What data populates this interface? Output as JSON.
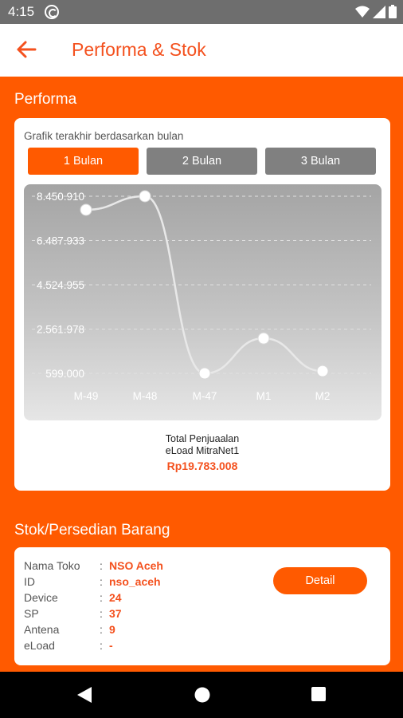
{
  "status_bar": {
    "time": "4:15",
    "icons": [
      "sync-icon",
      "wifi-icon",
      "signal-icon",
      "battery-icon"
    ]
  },
  "app_bar": {
    "title": "Performa & Stok",
    "back_icon": "arrow-left-icon"
  },
  "performance": {
    "section_title": "Performa",
    "caption": "Grafik terakhir berdasarkan bulan",
    "tabs": [
      {
        "label": "1 Bulan",
        "active": true
      },
      {
        "label": "2 Bulan",
        "active": false
      },
      {
        "label": "3 Bulan",
        "active": false
      }
    ],
    "total_label_line1": "Total Penjuaalan",
    "total_label_line2": "eLoad MitraNet1",
    "total_value": "Rp19.783.008"
  },
  "chart_data": {
    "type": "line",
    "categories": [
      "M-49",
      "M-48",
      "M-47",
      "M1",
      "M2"
    ],
    "y_ticks": [
      "8.450.910",
      "6.487.933",
      "4.524.955",
      "2.561.978",
      "599.000"
    ],
    "y_tick_values": [
      8450910,
      6487933,
      4524955,
      2561978,
      599000
    ],
    "series": [
      {
        "values": [
          7850000,
          8450910,
          599000,
          2150000,
          700000
        ]
      }
    ],
    "ylim": [
      599000,
      8450910
    ],
    "grid": true,
    "colors": {
      "line": "#e8e8e8",
      "point": "#ffffff",
      "grid": "#e0e0e0"
    }
  },
  "stock": {
    "section_title": "Stok/Persedian Barang",
    "rows": [
      {
        "label": "Nama Toko",
        "value": "NSO Aceh"
      },
      {
        "label": "ID",
        "value": "nso_aceh"
      },
      {
        "label": "Device",
        "value": "24"
      },
      {
        "label": "SP",
        "value": "37"
      },
      {
        "label": "Antena",
        "value": "9"
      },
      {
        "label": "eLoad",
        "value": "-"
      }
    ],
    "colon": ":",
    "detail_label": "Detail"
  },
  "nav_bar": {
    "icons": [
      "back-triangle-icon",
      "home-circle-icon",
      "recents-square-icon"
    ]
  },
  "colors": {
    "accent": "#ff5a00",
    "title": "#f4511e",
    "inactive_tab": "#808080"
  }
}
